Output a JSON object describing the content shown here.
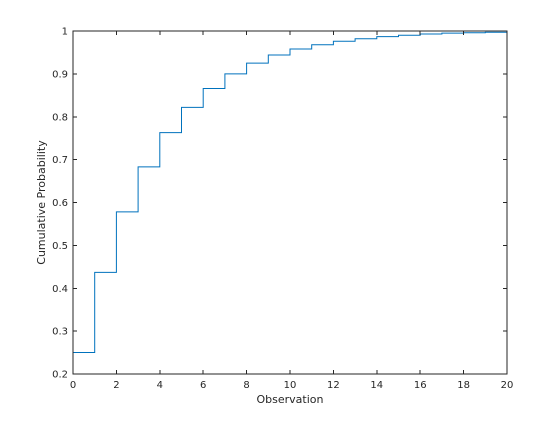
{
  "chart_data": {
    "type": "line",
    "style": "stairs",
    "xlabel": "Observation",
    "ylabel": "Cumulative Probability",
    "xlim": [
      0,
      20
    ],
    "ylim": [
      0.2,
      1
    ],
    "xticks": [
      0,
      2,
      4,
      6,
      8,
      10,
      12,
      14,
      16,
      18,
      20
    ],
    "yticks": [
      0.2,
      0.3,
      0.4,
      0.5,
      0.6,
      0.7,
      0.8,
      0.9,
      1
    ],
    "xtick_labels": [
      "0",
      "2",
      "4",
      "6",
      "8",
      "10",
      "12",
      "14",
      "16",
      "18",
      "20"
    ],
    "ytick_labels": [
      "0.2",
      "0.3",
      "0.4",
      "0.5",
      "0.6",
      "0.7",
      "0.8",
      "0.9",
      "1"
    ],
    "grid": false,
    "series": [
      {
        "color": "#0072BD",
        "x": [
          0,
          1,
          2,
          3,
          4,
          5,
          6,
          7,
          8,
          9,
          10,
          11,
          12,
          13,
          14,
          15,
          16,
          17,
          18,
          19,
          20
        ],
        "y": [
          0.25,
          0.437,
          0.578,
          0.683,
          0.763,
          0.822,
          0.866,
          0.9,
          0.925,
          0.944,
          0.958,
          0.968,
          0.976,
          0.982,
          0.987,
          0.99,
          0.993,
          0.995,
          0.996,
          0.997,
          0.998
        ]
      }
    ]
  }
}
